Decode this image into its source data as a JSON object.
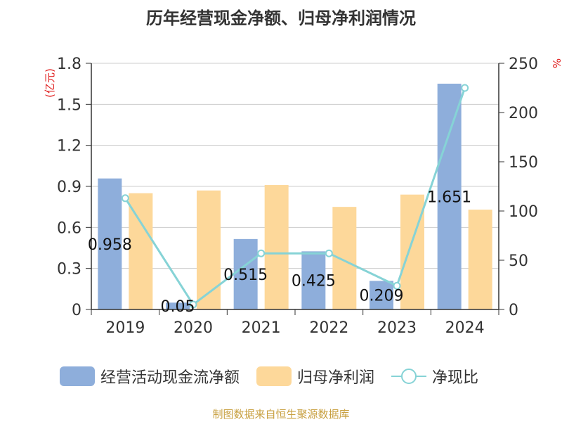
{
  "title": "历年经营现金净额、归母净利润情况",
  "source": "制图数据来自恒生聚源数据库",
  "colors": {
    "cash": "#8eaedb",
    "profit": "#fdd89a",
    "ratio": "#86d3d6",
    "axis_unit": "#e02020",
    "grid": "#cccccc",
    "axis": "#333333"
  },
  "chart_data": {
    "type": "bar",
    "categories": [
      "2019",
      "2020",
      "2021",
      "2022",
      "2023",
      "2024"
    ],
    "series": [
      {
        "name": "经营活动现金流净额",
        "type": "bar",
        "axis": "left",
        "values": [
          0.958,
          0.05,
          0.515,
          0.425,
          0.209,
          1.651
        ],
        "labels": [
          "0.958",
          "0.05",
          "0.515",
          "0.425",
          "0.209",
          "1.651"
        ]
      },
      {
        "name": "归母净利润",
        "type": "bar",
        "axis": "left",
        "values": [
          0.85,
          0.87,
          0.91,
          0.75,
          0.84,
          0.73
        ]
      },
      {
        "name": "净现比",
        "type": "line",
        "axis": "right",
        "values": [
          113,
          5,
          57,
          57,
          24,
          225
        ]
      }
    ],
    "y_left": {
      "unit": "(亿元)",
      "range": [
        0,
        1.8
      ],
      "ticks": [
        "0",
        "0.3",
        "0.6",
        "0.9",
        "1.2",
        "1.5",
        "1.8"
      ]
    },
    "y_right": {
      "unit": "%",
      "range": [
        0,
        250
      ],
      "ticks": [
        "0",
        "50",
        "100",
        "150",
        "200",
        "250"
      ]
    },
    "grid": true,
    "legend_position": "bottom"
  }
}
